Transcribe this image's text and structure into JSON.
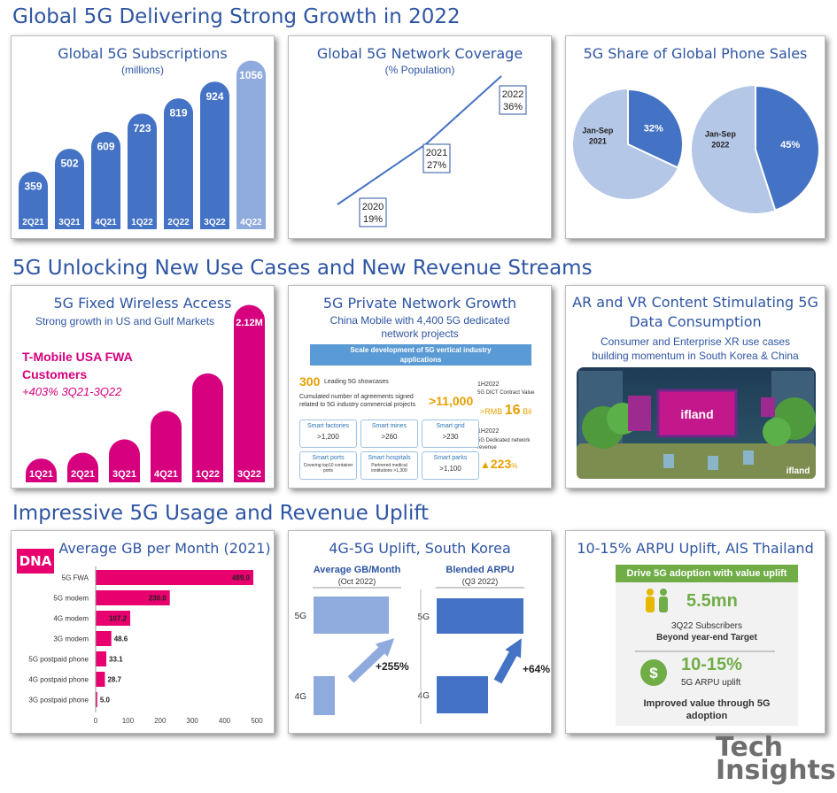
{
  "sections": [
    "Global 5G Delivering Strong Growth in 2022",
    "5G Unlocking New Use Cases and New Revenue Streams",
    "Impressive 5G Usage and Revenue Uplift"
  ],
  "logo": {
    "line1": "Tech",
    "line2": "Insights"
  },
  "colors": {
    "blue": "#4472c4",
    "lightblue": "#8faadc",
    "paleblue": "#b4c7e7",
    "magenta": "#d6007e",
    "pink": "#e8006f",
    "green": "#70ad47",
    "title": "#2e55a3"
  },
  "chart_data": [
    {
      "type": "bar",
      "title": "Global 5G Subscriptions",
      "subtitle": "(millions)",
      "categories": [
        "2Q21",
        "3Q21",
        "4Q21",
        "1Q22",
        "2Q22",
        "3Q22",
        "4Q22"
      ],
      "values": [
        359,
        502,
        609,
        723,
        819,
        924,
        1056
      ],
      "value_labels": [
        "359",
        "502",
        "609",
        "723",
        "819",
        "924",
        "1056"
      ]
    },
    {
      "type": "line",
      "title": "Global 5G Network Coverage",
      "subtitle": "(% Population)",
      "x": [
        "2020",
        "2021",
        "2022"
      ],
      "values": [
        19,
        27,
        36
      ],
      "value_labels": [
        "19%",
        "27%",
        "36%"
      ]
    },
    {
      "type": "pie",
      "title": "5G Share of Global Phone Sales",
      "pies": [
        {
          "label_line1": "Jan-Sep",
          "label_line2": "2021",
          "value": 32,
          "value_label": "32%"
        },
        {
          "label_line1": "Jan-Sep",
          "label_line2": "2022",
          "value": 45,
          "value_label": "45%"
        }
      ]
    },
    {
      "type": "bar",
      "title": "5G Fixed Wireless Access",
      "subtitle": "Strong growth in US and Gulf Markets",
      "annotation_line1": "T-Mobile USA FWA",
      "annotation_line2": "Customers",
      "annotation_line3": "+403% 3Q21-3Q22",
      "categories": [
        "1Q21",
        "2Q21",
        "3Q21",
        "4Q21",
        "1Q22",
        "3Q22"
      ],
      "values": [
        0.28,
        0.35,
        0.51,
        0.85,
        1.3,
        2.12
      ],
      "top_label": "2.12M"
    },
    {
      "type": "bar",
      "title": "Average GB per Month (2021)",
      "brand": "DNA",
      "categories": [
        "5G FWA",
        "5G modem",
        "4G modem",
        "3G modem",
        "5G postpaid phone",
        "4G postpaid phone",
        "3G postpaid phone"
      ],
      "values": [
        489.0,
        230.0,
        107.2,
        48.6,
        33.1,
        28.7,
        5.0
      ],
      "value_labels": [
        "489.0",
        "230.0",
        "107.2",
        "48.6",
        "33.1",
        "28.7",
        "5.0"
      ],
      "xticks": [
        "0",
        "100",
        "200",
        "300",
        "400",
        "500"
      ],
      "xlim": [
        0,
        500
      ]
    },
    {
      "type": "bar",
      "title": "4G-5G Uplift, South Korea",
      "groups": [
        {
          "name": "Average GB/Month",
          "period": "(Oct 2022)",
          "categories": [
            "5G",
            "4G"
          ],
          "uplift": "+255%"
        },
        {
          "name": "Blended ARPU",
          "period": "(Q3 2022)",
          "categories": [
            "5G",
            "4G"
          ],
          "uplift": "+64%"
        }
      ]
    }
  ],
  "private_network": {
    "title": "5G Private Network Growth",
    "subtitle": "China Mobile with 4,400 5G dedicated network projects",
    "banner": "Scale development of 5G vertical industry applications",
    "showcases_num": "300",
    "showcases_text": "Leading 5G showcases",
    "agreements_text": "Cumulated number of agreements signed related to 5G industry commercial projects",
    "agreements_num": ">11,000",
    "contract_period": "1H2022",
    "contract_label": "5G DICT Contract Value",
    "contract_prefix": ">RMB",
    "contract_num": "16",
    "contract_unit": "Bil",
    "revenue_period": "1H2022",
    "revenue_label": "5G Dedicated network revenue",
    "revenue_num": "223",
    "revenue_unit": "%",
    "cells": [
      {
        "title": "Smart factories",
        "value": ">1,200",
        "note": ""
      },
      {
        "title": "Smart mines",
        "value": ">260",
        "note": ""
      },
      {
        "title": "Smart grid",
        "value": ">230",
        "note": ""
      },
      {
        "title": "Smart ports",
        "value": "",
        "note": "Covering top10 container ports"
      },
      {
        "title": "Smart hospitals",
        "value": "",
        "note": "Partnered medical institutions >1,300"
      },
      {
        "title": "Smart parks",
        "value": ">1,100",
        "note": ""
      }
    ]
  },
  "arvr": {
    "title_line1": "AR and VR Content Stimulating 5G",
    "title_line2": "Data Consumption",
    "subtitle_line1": "Consumer and Enterprise XR use cases",
    "subtitle_line2": "building momentum in South Korea & China",
    "screen_text": "ifland",
    "corner_text": "ifland"
  },
  "ais": {
    "title": "10-15% ARPU Uplift, AIS Thailand",
    "banner": "Drive 5G adoption with value uplift",
    "subs_num": "5.5mn",
    "subs_line1": "3Q22 Subscribers",
    "subs_line2": "Beyond year-end Target",
    "arpu_num": "10-15%",
    "arpu_label": "5G ARPU uplift",
    "footer_line1": "Improved value through 5G",
    "footer_line2": "adoption",
    "dollar": "$"
  }
}
